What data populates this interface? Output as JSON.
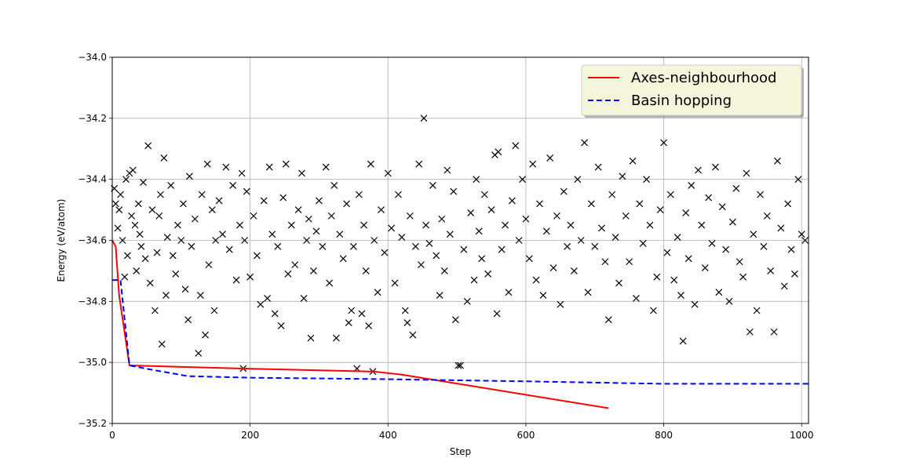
{
  "chart_data": {
    "type": "line",
    "title": "",
    "xlabel": "Step",
    "ylabel": "Energy (eV/atom)",
    "xlim": [
      0,
      1010
    ],
    "ylim": [
      -35.2,
      -34.0
    ],
    "xticks": [
      0,
      200,
      400,
      600,
      800,
      1000
    ],
    "yticks": [
      -35.2,
      -35.0,
      -34.8,
      -34.6,
      -34.4,
      -34.2,
      -34.0
    ],
    "xtick_labels": [
      "0",
      "200",
      "400",
      "600",
      "800",
      "1000"
    ],
    "ytick_labels": [
      "−35.2",
      "−35.0",
      "−34.8",
      "−34.6",
      "−34.4",
      "−34.2",
      "−34.0"
    ],
    "grid": true,
    "legend_position": "top-right",
    "series": [
      {
        "name": "Axes-neighbourhood",
        "style": "solid",
        "color": "#ff0000",
        "x": [
          0,
          5,
          10,
          25,
          190,
          380,
          420,
          720
        ],
        "y": [
          -34.6,
          -34.62,
          -34.78,
          -35.01,
          -35.02,
          -35.03,
          -35.04,
          -35.15
        ]
      },
      {
        "name": "Basin hopping",
        "style": "dashed",
        "color": "#0000ff",
        "x": [
          0,
          12,
          25,
          60,
          110,
          200,
          400,
          600,
          800,
          1010
        ],
        "y": [
          -34.73,
          -34.73,
          -35.01,
          -35.025,
          -35.045,
          -35.05,
          -35.055,
          -35.062,
          -35.07,
          -35.07
        ]
      }
    ],
    "scatter": {
      "marker": "x",
      "color": "#000000",
      "points": [
        [
          3,
          -34.43
        ],
        [
          5,
          -34.48
        ],
        [
          8,
          -34.56
        ],
        [
          10,
          -34.5
        ],
        [
          12,
          -34.45
        ],
        [
          15,
          -34.6
        ],
        [
          18,
          -34.72
        ],
        [
          20,
          -34.4
        ],
        [
          22,
          -34.65
        ],
        [
          25,
          -34.38
        ],
        [
          28,
          -34.52
        ],
        [
          30,
          -34.37
        ],
        [
          33,
          -34.55
        ],
        [
          35,
          -34.7
        ],
        [
          38,
          -34.48
        ],
        [
          40,
          -34.58
        ],
        [
          42,
          -34.62
        ],
        [
          45,
          -34.41
        ],
        [
          48,
          -34.66
        ],
        [
          52,
          -34.29
        ],
        [
          55,
          -34.74
        ],
        [
          58,
          -34.5
        ],
        [
          62,
          -34.83
        ],
        [
          65,
          -34.64
        ],
        [
          68,
          -34.52
        ],
        [
          70,
          -34.45
        ],
        [
          72,
          -34.94
        ],
        [
          75,
          -34.33
        ],
        [
          78,
          -34.78
        ],
        [
          80,
          -34.59
        ],
        [
          85,
          -34.42
        ],
        [
          88,
          -34.65
        ],
        [
          92,
          -34.71
        ],
        [
          95,
          -34.55
        ],
        [
          100,
          -34.6
        ],
        [
          103,
          -34.48
        ],
        [
          106,
          -34.76
        ],
        [
          110,
          -34.86
        ],
        [
          112,
          -34.39
        ],
        [
          115,
          -34.62
        ],
        [
          120,
          -34.53
        ],
        [
          125,
          -34.97
        ],
        [
          128,
          -34.78
        ],
        [
          130,
          -34.45
        ],
        [
          135,
          -34.91
        ],
        [
          138,
          -34.35
        ],
        [
          140,
          -34.68
        ],
        [
          145,
          -34.5
        ],
        [
          148,
          -34.83
        ],
        [
          150,
          -34.6
        ],
        [
          155,
          -34.47
        ],
        [
          160,
          -34.58
        ],
        [
          165,
          -34.36
        ],
        [
          170,
          -34.63
        ],
        [
          175,
          -34.42
        ],
        [
          180,
          -34.73
        ],
        [
          185,
          -34.55
        ],
        [
          188,
          -34.38
        ],
        [
          190,
          -35.02
        ],
        [
          192,
          -34.6
        ],
        [
          195,
          -34.44
        ],
        [
          200,
          -34.72
        ],
        [
          205,
          -34.52
        ],
        [
          210,
          -34.65
        ],
        [
          215,
          -34.81
        ],
        [
          220,
          -34.47
        ],
        [
          225,
          -34.79
        ],
        [
          228,
          -34.36
        ],
        [
          232,
          -34.58
        ],
        [
          236,
          -34.84
        ],
        [
          240,
          -34.62
        ],
        [
          245,
          -34.88
        ],
        [
          248,
          -34.46
        ],
        [
          252,
          -34.35
        ],
        [
          255,
          -34.71
        ],
        [
          260,
          -34.55
        ],
        [
          265,
          -34.68
        ],
        [
          270,
          -34.5
        ],
        [
          275,
          -34.38
        ],
        [
          278,
          -34.79
        ],
        [
          282,
          -34.6
        ],
        [
          285,
          -34.53
        ],
        [
          288,
          -34.92
        ],
        [
          292,
          -34.7
        ],
        [
          296,
          -34.57
        ],
        [
          300,
          -34.47
        ],
        [
          305,
          -34.62
        ],
        [
          310,
          -34.36
        ],
        [
          315,
          -34.74
        ],
        [
          318,
          -34.52
        ],
        [
          322,
          -34.42
        ],
        [
          325,
          -34.92
        ],
        [
          330,
          -34.58
        ],
        [
          335,
          -34.66
        ],
        [
          340,
          -34.48
        ],
        [
          343,
          -34.87
        ],
        [
          347,
          -34.83
        ],
        [
          350,
          -34.62
        ],
        [
          355,
          -35.02
        ],
        [
          358,
          -34.45
        ],
        [
          362,
          -34.84
        ],
        [
          365,
          -34.55
        ],
        [
          368,
          -34.7
        ],
        [
          372,
          -34.88
        ],
        [
          375,
          -34.35
        ],
        [
          378,
          -35.03
        ],
        [
          380,
          -34.6
        ],
        [
          385,
          -34.77
        ],
        [
          390,
          -34.5
        ],
        [
          395,
          -34.64
        ],
        [
          400,
          -34.38
        ],
        [
          405,
          -34.56
        ],
        [
          410,
          -34.74
        ],
        [
          415,
          -34.45
        ],
        [
          420,
          -34.59
        ],
        [
          425,
          -34.83
        ],
        [
          428,
          -34.87
        ],
        [
          432,
          -34.52
        ],
        [
          436,
          -34.91
        ],
        [
          440,
          -34.62
        ],
        [
          445,
          -34.35
        ],
        [
          448,
          -34.68
        ],
        [
          452,
          -34.2
        ],
        [
          455,
          -34.55
        ],
        [
          460,
          -34.61
        ],
        [
          465,
          -34.42
        ],
        [
          470,
          -34.65
        ],
        [
          475,
          -34.78
        ],
        [
          478,
          -34.53
        ],
        [
          482,
          -34.7
        ],
        [
          486,
          -34.37
        ],
        [
          490,
          -34.58
        ],
        [
          495,
          -34.44
        ],
        [
          498,
          -34.86
        ],
        [
          502,
          -35.01
        ],
        [
          505,
          -35.01
        ],
        [
          510,
          -34.63
        ],
        [
          515,
          -34.8
        ],
        [
          520,
          -34.51
        ],
        [
          525,
          -34.73
        ],
        [
          528,
          -34.4
        ],
        [
          532,
          -34.57
        ],
        [
          536,
          -34.66
        ],
        [
          540,
          -34.45
        ],
        [
          545,
          -34.71
        ],
        [
          550,
          -34.5
        ],
        [
          555,
          -34.32
        ],
        [
          558,
          -34.84
        ],
        [
          560,
          -34.31
        ],
        [
          565,
          -34.63
        ],
        [
          570,
          -34.55
        ],
        [
          575,
          -34.77
        ],
        [
          580,
          -34.47
        ],
        [
          585,
          -34.29
        ],
        [
          590,
          -34.6
        ],
        [
          595,
          -34.4
        ],
        [
          600,
          -34.53
        ],
        [
          605,
          -34.66
        ],
        [
          610,
          -34.35
        ],
        [
          615,
          -34.73
        ],
        [
          620,
          -34.48
        ],
        [
          625,
          -34.78
        ],
        [
          630,
          -34.57
        ],
        [
          635,
          -34.33
        ],
        [
          640,
          -34.69
        ],
        [
          645,
          -34.52
        ],
        [
          650,
          -34.81
        ],
        [
          655,
          -34.44
        ],
        [
          660,
          -34.62
        ],
        [
          665,
          -34.55
        ],
        [
          670,
          -34.7
        ],
        [
          675,
          -34.4
        ],
        [
          680,
          -34.6
        ],
        [
          685,
          -34.28
        ],
        [
          690,
          -34.77
        ],
        [
          695,
          -34.48
        ],
        [
          700,
          -34.62
        ],
        [
          705,
          -34.36
        ],
        [
          710,
          -34.56
        ],
        [
          715,
          -34.67
        ],
        [
          720,
          -34.86
        ],
        [
          725,
          -34.45
        ],
        [
          730,
          -34.59
        ],
        [
          735,
          -34.74
        ],
        [
          740,
          -34.39
        ],
        [
          745,
          -34.52
        ],
        [
          750,
          -34.67
        ],
        [
          755,
          -34.34
        ],
        [
          760,
          -34.79
        ],
        [
          765,
          -34.48
        ],
        [
          770,
          -34.61
        ],
        [
          775,
          -34.4
        ],
        [
          780,
          -34.55
        ],
        [
          785,
          -34.83
        ],
        [
          790,
          -34.72
        ],
        [
          795,
          -34.5
        ],
        [
          800,
          -34.28
        ],
        [
          805,
          -34.64
        ],
        [
          810,
          -34.45
        ],
        [
          815,
          -34.73
        ],
        [
          820,
          -34.59
        ],
        [
          825,
          -34.78
        ],
        [
          828,
          -34.93
        ],
        [
          832,
          -34.51
        ],
        [
          836,
          -34.66
        ],
        [
          840,
          -34.42
        ],
        [
          845,
          -34.81
        ],
        [
          850,
          -34.37
        ],
        [
          855,
          -34.55
        ],
        [
          860,
          -34.69
        ],
        [
          865,
          -34.46
        ],
        [
          870,
          -34.61
        ],
        [
          875,
          -34.36
        ],
        [
          880,
          -34.77
        ],
        [
          885,
          -34.49
        ],
        [
          890,
          -34.63
        ],
        [
          895,
          -34.8
        ],
        [
          900,
          -34.54
        ],
        [
          905,
          -34.43
        ],
        [
          910,
          -34.67
        ],
        [
          915,
          -34.72
        ],
        [
          920,
          -34.38
        ],
        [
          925,
          -34.9
        ],
        [
          930,
          -34.58
        ],
        [
          935,
          -34.83
        ],
        [
          940,
          -34.45
        ],
        [
          945,
          -34.62
        ],
        [
          950,
          -34.52
        ],
        [
          955,
          -34.7
        ],
        [
          960,
          -34.9
        ],
        [
          965,
          -34.34
        ],
        [
          970,
          -34.56
        ],
        [
          975,
          -34.75
        ],
        [
          980,
          -34.48
        ],
        [
          985,
          -34.63
        ],
        [
          990,
          -34.71
        ],
        [
          995,
          -34.4
        ],
        [
          1000,
          -34.58
        ],
        [
          1005,
          -34.6
        ]
      ]
    }
  }
}
